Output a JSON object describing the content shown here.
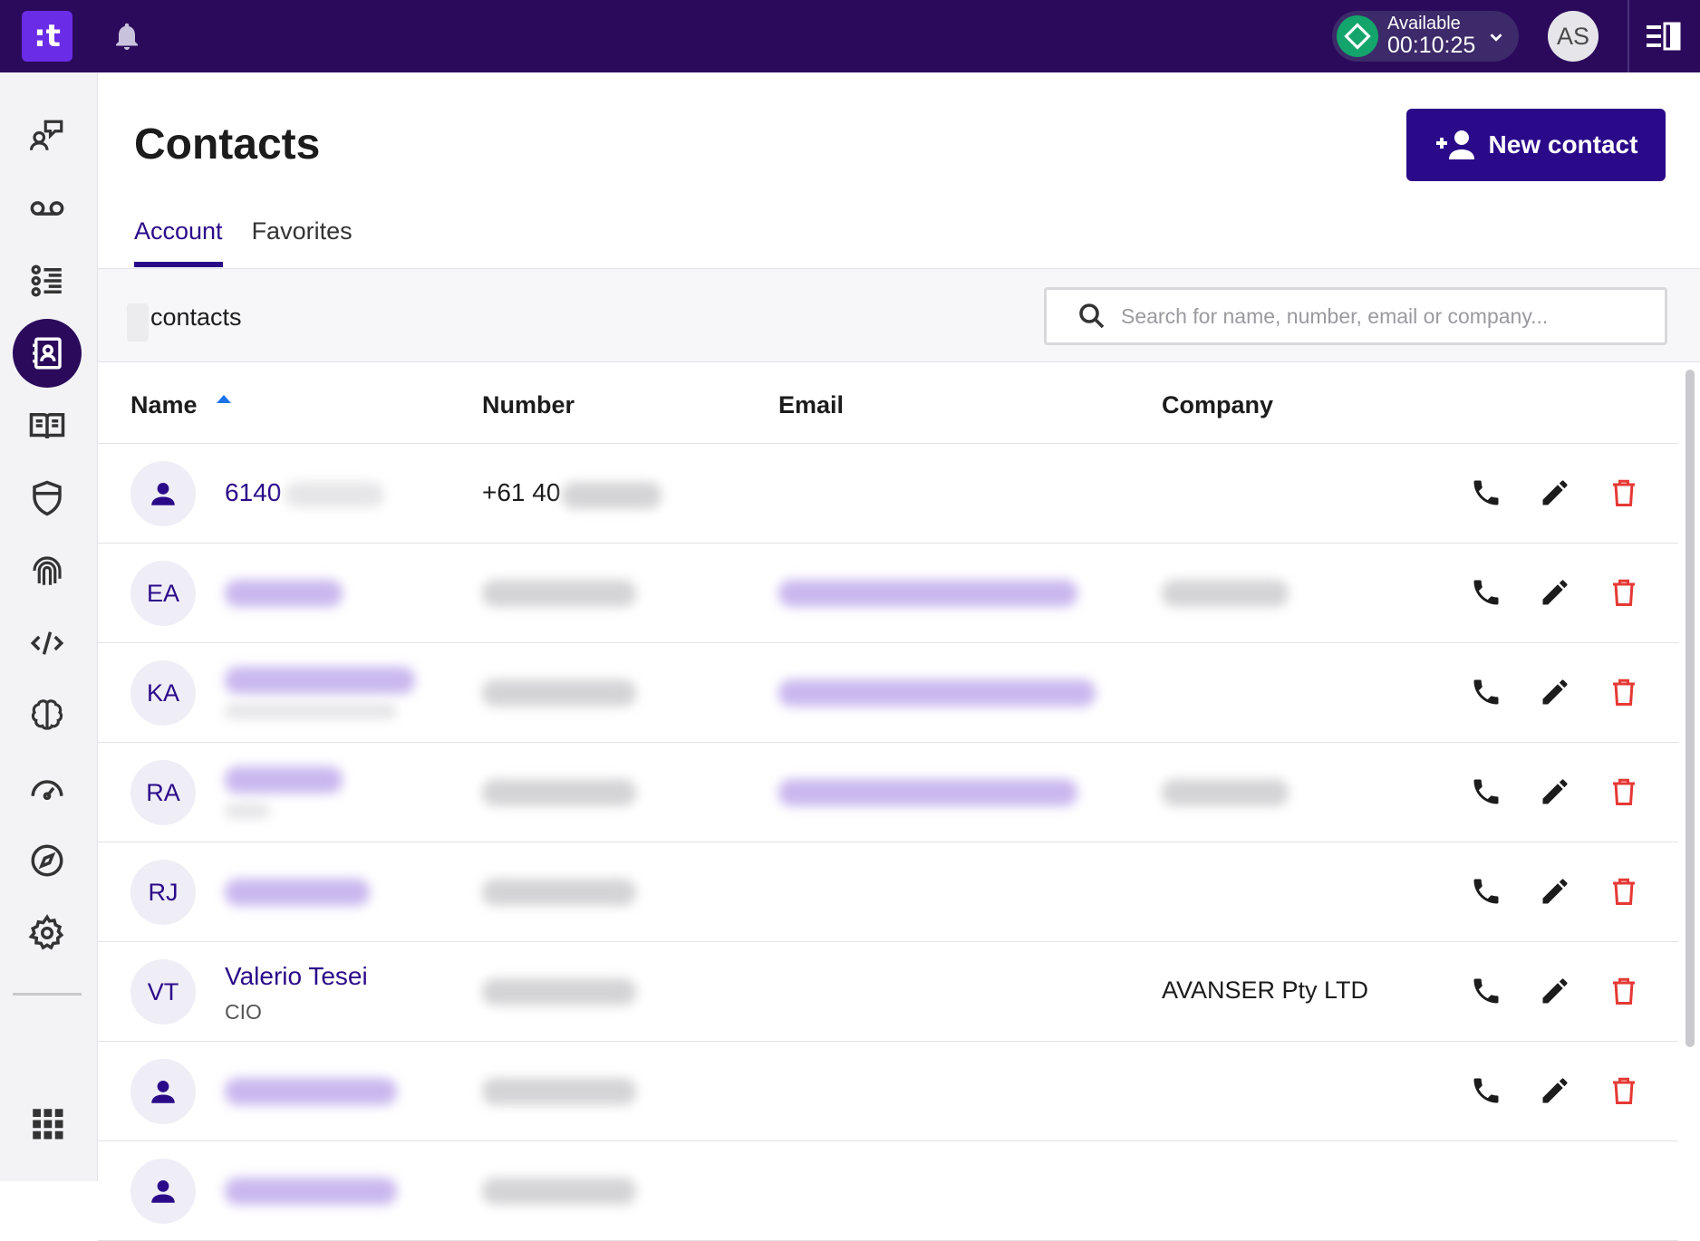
{
  "app": {
    "logo_text": ":t"
  },
  "topbar": {
    "status_label": "Available",
    "status_time": "00:10:25",
    "avatar_initials": "AS",
    "brand_color": "#2b0a5c",
    "status_color": "#13a56b"
  },
  "sidebar": {
    "items": [
      {
        "name": "agent-chat-icon"
      },
      {
        "name": "voicemail-icon"
      },
      {
        "name": "queue-list-icon"
      },
      {
        "name": "contacts-icon",
        "active": true
      },
      {
        "name": "book-icon"
      },
      {
        "name": "shield-icon"
      },
      {
        "name": "fingerprint-icon"
      },
      {
        "name": "code-icon"
      },
      {
        "name": "brain-icon"
      },
      {
        "name": "speedometer-icon"
      },
      {
        "name": "compass-icon"
      },
      {
        "name": "gear-icon"
      },
      {
        "name": "apps-grid-icon"
      }
    ]
  },
  "page": {
    "title": "Contacts",
    "new_contact_label": "New contact",
    "tabs": [
      {
        "label": "Account",
        "active": true
      },
      {
        "label": "Favorites",
        "active": false
      }
    ]
  },
  "filter": {
    "count_label": "contacts",
    "search_placeholder": "Search for name, number, email or company..."
  },
  "table": {
    "columns": [
      "Name",
      "Number",
      "Email",
      "Company"
    ],
    "sorted_by": "Name",
    "sort_direction": "ascending",
    "rows": [
      {
        "avatar": "person-icon",
        "name": "6140",
        "title": "",
        "number": "+61 40",
        "email": "",
        "company": ""
      },
      {
        "avatar": "EA",
        "name": "",
        "title": "",
        "number": "",
        "email": "",
        "company": ""
      },
      {
        "avatar": "KA",
        "name": "",
        "title": "",
        "number": "",
        "email": "",
        "company": ""
      },
      {
        "avatar": "RA",
        "name": "",
        "title": "",
        "number": "",
        "email": "",
        "company": ""
      },
      {
        "avatar": "RJ",
        "name": "",
        "title": "",
        "number": "",
        "email": "",
        "company": ""
      },
      {
        "avatar": "VT",
        "name": "Valerio Tesei",
        "title": "CIO",
        "number": "",
        "email": "",
        "company": "AVANSER Pty LTD"
      },
      {
        "avatar": "person-icon",
        "name": "",
        "title": "",
        "number": "",
        "email": "",
        "company": ""
      }
    ]
  },
  "colors": {
    "accent": "#2b0a8a",
    "delete": "#e53935"
  }
}
